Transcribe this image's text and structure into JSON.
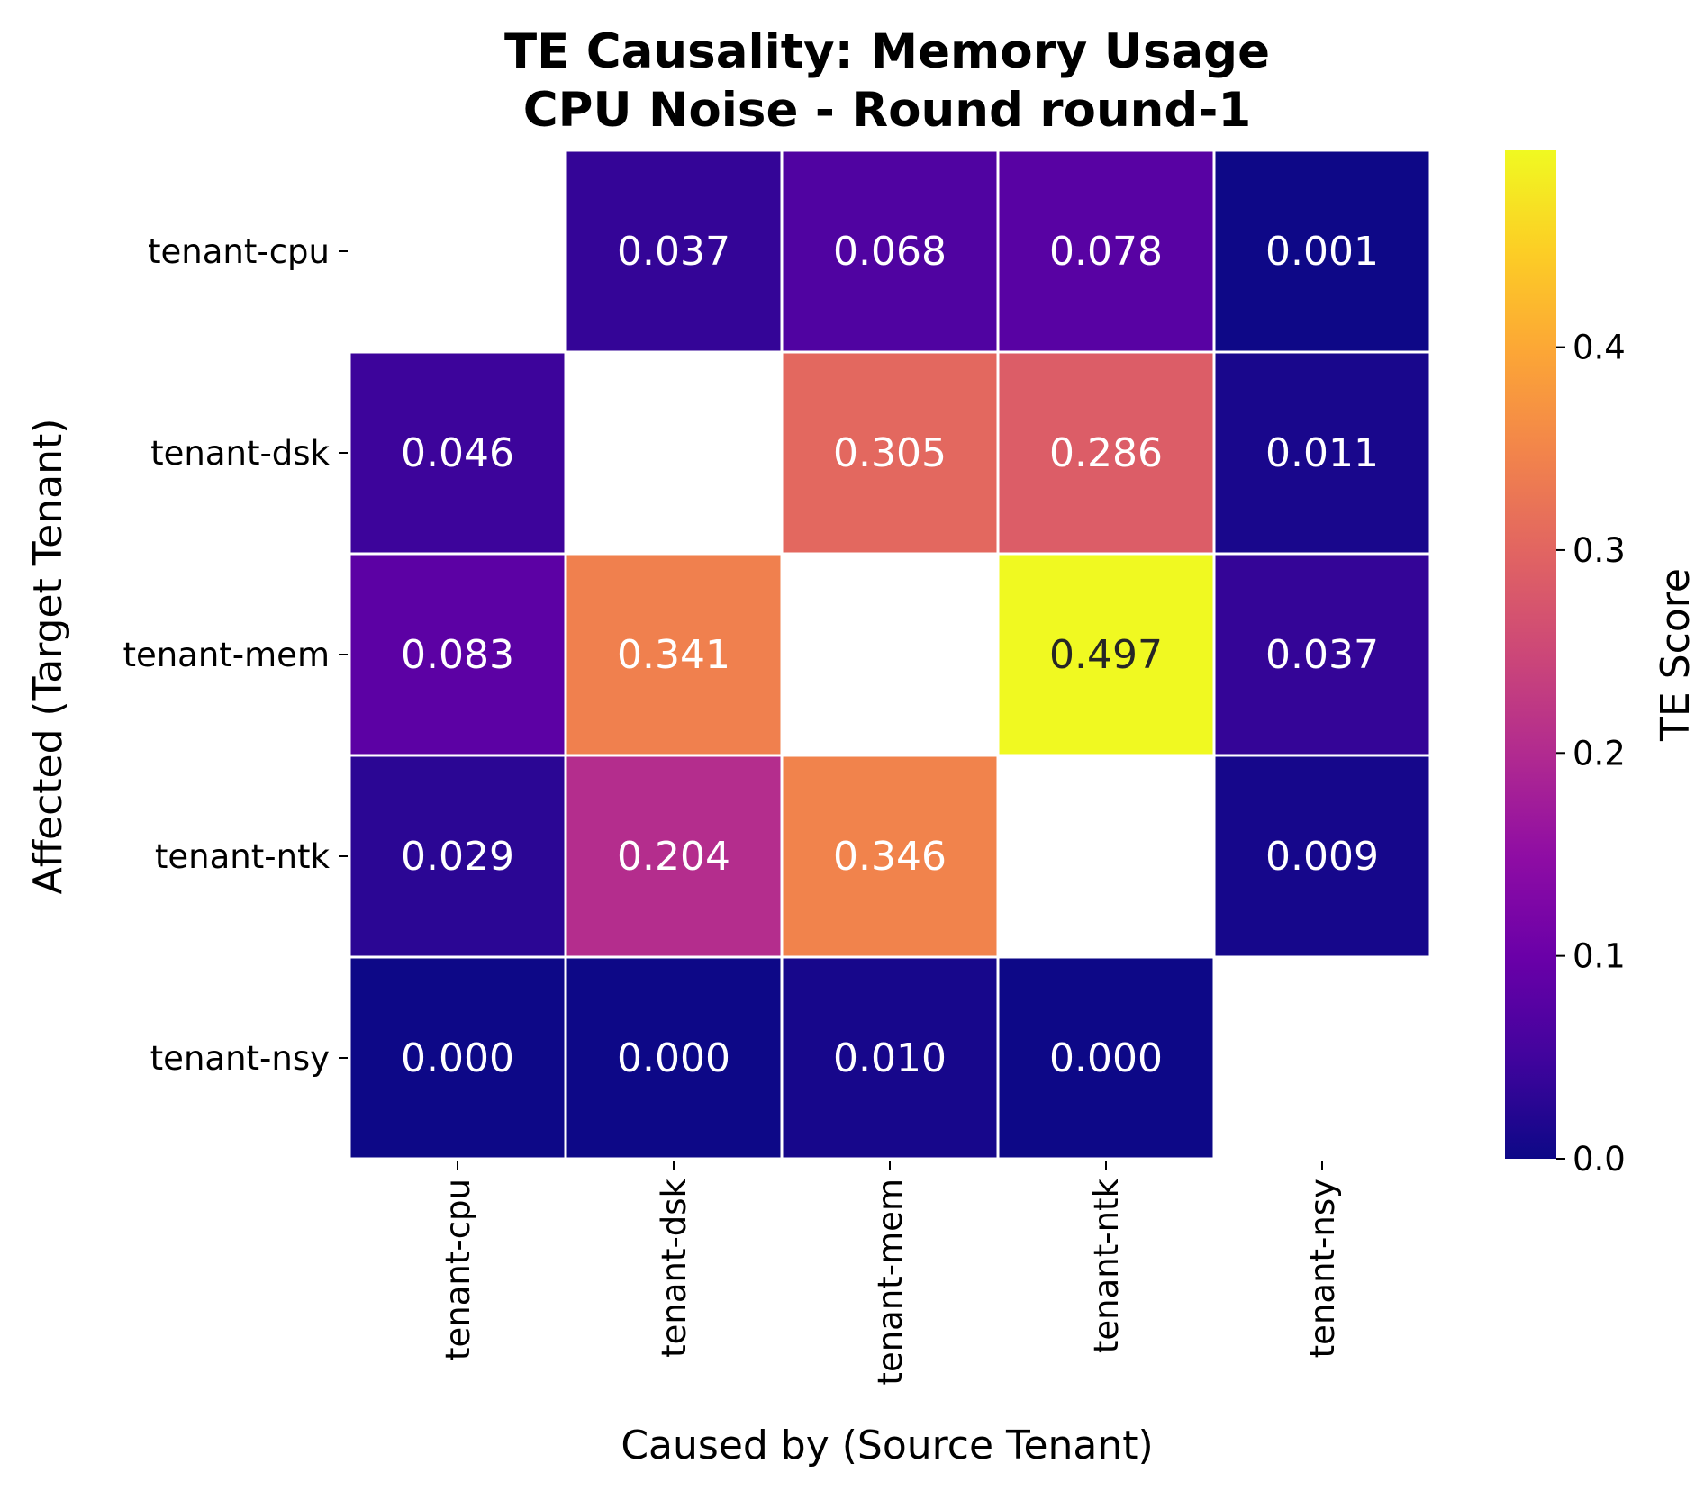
{
  "chart_data": {
    "type": "heatmap",
    "title": [
      "TE Causality: Memory Usage",
      "CPU Noise - Round round-1"
    ],
    "xlabel": "Caused by (Source Tenant)",
    "ylabel": "Affected (Target Tenant)",
    "x_categories": [
      "tenant-cpu",
      "tenant-dsk",
      "tenant-mem",
      "tenant-ntk",
      "tenant-nsy"
    ],
    "y_categories": [
      "tenant-cpu",
      "tenant-dsk",
      "tenant-mem",
      "tenant-ntk",
      "tenant-nsy"
    ],
    "values": [
      [
        null,
        0.037,
        0.068,
        0.078,
        0.001
      ],
      [
        0.046,
        null,
        0.305,
        0.286,
        0.011
      ],
      [
        0.083,
        0.341,
        null,
        0.497,
        0.037
      ],
      [
        0.029,
        0.204,
        0.346,
        null,
        0.009
      ],
      [
        0.0,
        0.0,
        0.01,
        0.0,
        null
      ]
    ],
    "value_labels": [
      [
        "",
        "0.037",
        "0.068",
        "0.078",
        "0.001"
      ],
      [
        "0.046",
        "",
        "0.305",
        "0.286",
        "0.011"
      ],
      [
        "0.083",
        "0.341",
        "",
        "0.497",
        "0.037"
      ],
      [
        "0.029",
        "0.204",
        "0.346",
        "",
        "0.009"
      ],
      [
        "0.000",
        "0.000",
        "0.010",
        "0.000",
        ""
      ]
    ],
    "colormap": "plasma",
    "colorbar": {
      "label": "TE Score",
      "range": [
        0,
        0.497
      ],
      "ticks": [
        0.0,
        0.1,
        0.2,
        0.3,
        0.4
      ],
      "tick_labels": [
        "0.0",
        "0.1",
        "0.2",
        "0.3",
        "0.4"
      ]
    },
    "cell_border_color": "#ffffff",
    "grid": false
  }
}
